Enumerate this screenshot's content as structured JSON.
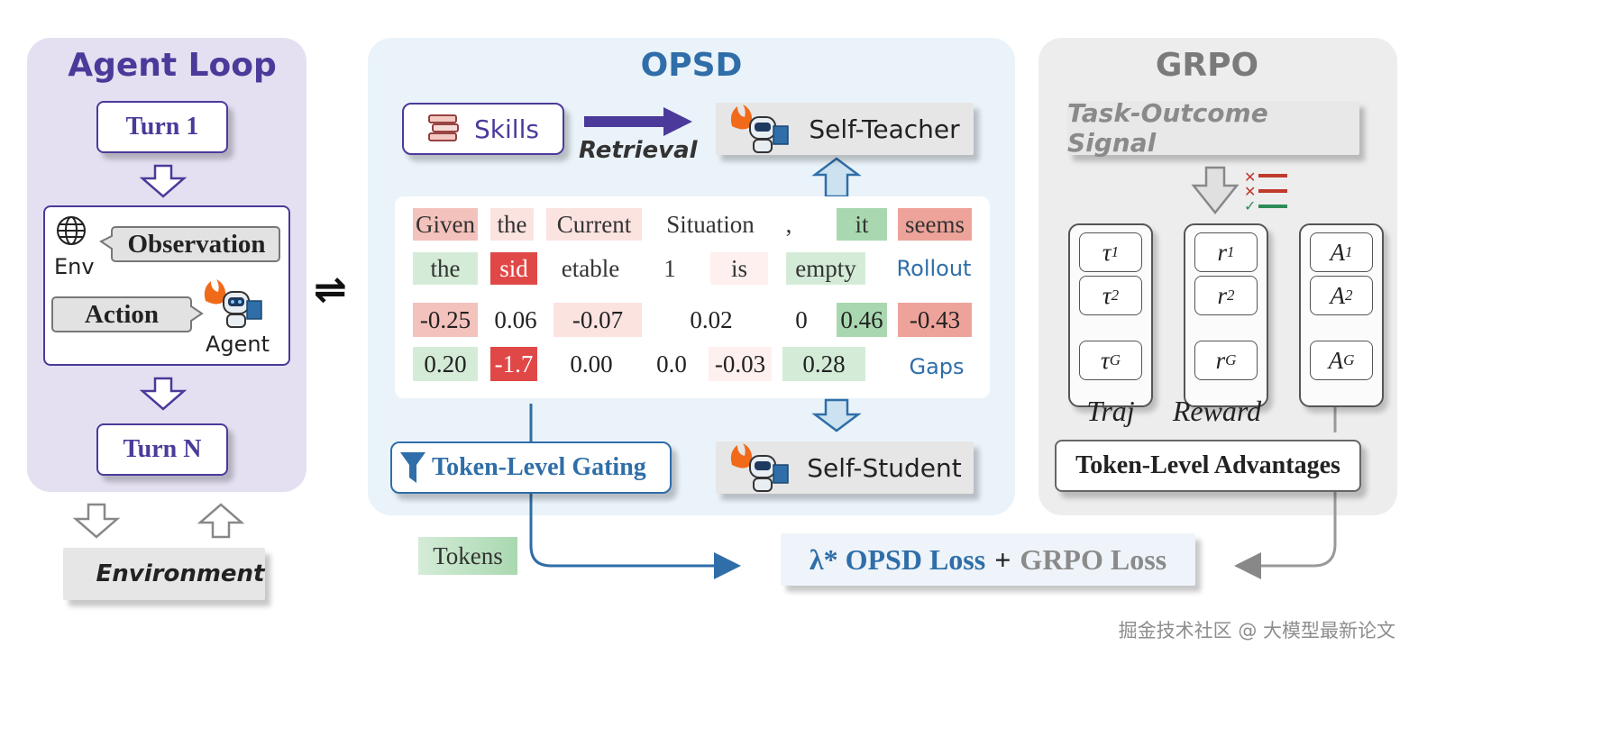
{
  "agent_loop": {
    "title": "Agent Loop",
    "turn1": "Turn 1",
    "turnN": "Turn N",
    "env_label": "Env",
    "observation": "Observation",
    "action": "Action",
    "agent_label": "Agent",
    "environment": "Environment",
    "exchange_symbol": "⇌"
  },
  "opsd": {
    "title": "OPSD",
    "skills": "Skills",
    "retrieval": "Retrieval",
    "self_teacher": "Self-Teacher",
    "self_student": "Self-Student",
    "rollout_label": "Rollout",
    "gaps_label": "Gaps",
    "tokens_row1": [
      "Given",
      "the",
      "Current",
      "Situation",
      ",",
      "it",
      "seems"
    ],
    "tokens_row2": [
      "the",
      "sid",
      "etable",
      "1",
      "is",
      "empty"
    ],
    "gaps_row1": [
      "-0.25",
      "0.06",
      "-0.07",
      "0.02",
      "0",
      "0.46",
      "-0.43"
    ],
    "gaps_row2": [
      "0.20",
      "-1.7",
      "0.00",
      "0.0",
      "-0.03",
      "0.28"
    ],
    "gating": "Token-Level Gating",
    "tokens_tag": "Tokens"
  },
  "loss": {
    "opsd_part": "λ* OPSD Loss",
    "plus": "+",
    "grpo_part": "GRPO Loss"
  },
  "grpo": {
    "title": "GRPO",
    "signal": "Task-Outcome Signal",
    "traj_items": [
      "τ1",
      "τ2",
      "τG"
    ],
    "reward_items": [
      "r1",
      "r2",
      "rG"
    ],
    "adv_items": [
      "A1",
      "A2",
      "AG"
    ],
    "traj_label": "Traj",
    "reward_label": "Reward",
    "advantages": "Token-Level Advantages"
  },
  "watermark": "掘金技术社区 @ 大模型最新论文",
  "colors": {
    "purple": "#4b3a9a",
    "blue": "#2f6ea8",
    "grey_title": "#7a7a7a",
    "green": "#a9d8b0",
    "red": "#e04848",
    "pink": "#f4c2bc",
    "light_pink": "#fbe3e0",
    "light_green": "#d4ecd7"
  }
}
